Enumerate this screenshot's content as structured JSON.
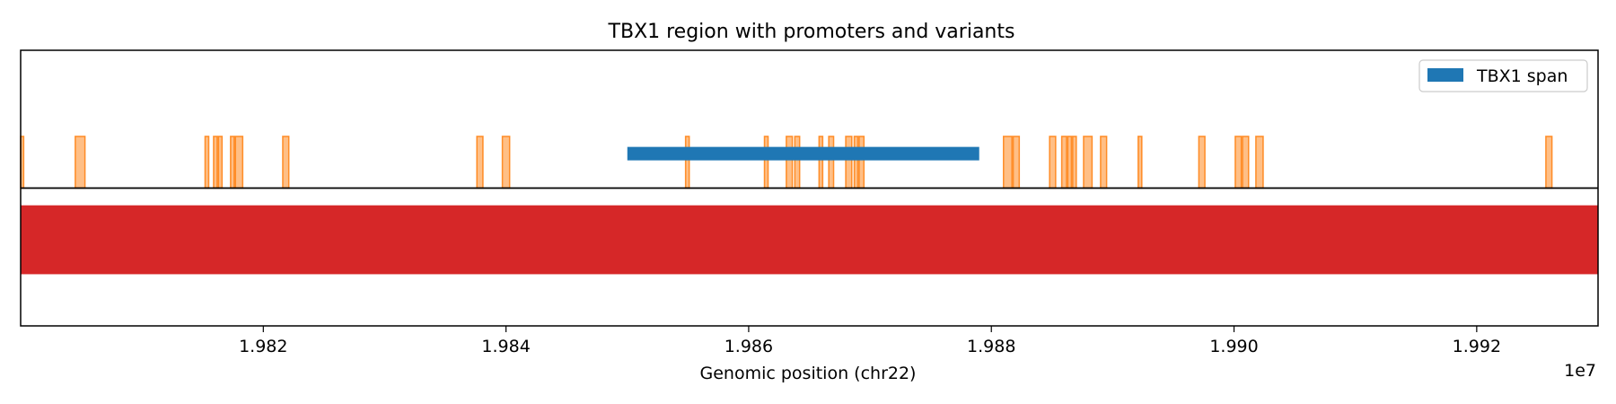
{
  "chart_data": {
    "type": "genome-track",
    "title": "TBX1 region with promoters and variants",
    "xlabel": "Genomic position (chr22)",
    "ylabel": "",
    "x_offset_label": "1e7",
    "xlim": [
      19800000,
      19930000
    ],
    "ylim": [
      -1.2,
      1.2
    ],
    "xticks": [
      19820000,
      19840000,
      19860000,
      19880000,
      19900000,
      19920000
    ],
    "xtick_labels": [
      "1.982",
      "1.984",
      "1.986",
      "1.988",
      "1.990",
      "1.992"
    ],
    "grid": false,
    "legend": {
      "position": "top-right",
      "entries": [
        "TBX1 span"
      ]
    },
    "baseline": {
      "y": 0,
      "color": "#000000"
    },
    "gene_span": {
      "name": "TBX1 span",
      "start": 19850000,
      "end": 19879000,
      "y": 0.3,
      "color": "#1f77b4"
    },
    "promoter_band": {
      "start": 19800000,
      "end": 19930000,
      "y0": -0.75,
      "y1": -0.15,
      "color": "#d62728"
    },
    "variants": {
      "color": "#ff7f0e",
      "y0": 0,
      "y1": 0.45,
      "regions": [
        [
          19800000,
          19800250
        ],
        [
          19804500,
          19805300
        ],
        [
          19815200,
          19815500
        ],
        [
          19815900,
          19816200
        ],
        [
          19816300,
          19816600
        ],
        [
          19817300,
          19817600
        ],
        [
          19817700,
          19818300
        ],
        [
          19821600,
          19822100
        ],
        [
          19837600,
          19838100
        ],
        [
          19839700,
          19840300
        ],
        [
          19854800,
          19855100
        ],
        [
          19861300,
          19861600
        ],
        [
          19863100,
          19863600
        ],
        [
          19863800,
          19864200
        ],
        [
          19865800,
          19866100
        ],
        [
          19866600,
          19867000
        ],
        [
          19868000,
          19868500
        ],
        [
          19868700,
          19869000
        ],
        [
          19869100,
          19869500
        ],
        [
          19881000,
          19881700
        ],
        [
          19881800,
          19882300
        ],
        [
          19884800,
          19885300
        ],
        [
          19885800,
          19886200
        ],
        [
          19886300,
          19886600
        ],
        [
          19886700,
          19887000
        ],
        [
          19887600,
          19888300
        ],
        [
          19889000,
          19889500
        ],
        [
          19892100,
          19892400
        ],
        [
          19897100,
          19897600
        ],
        [
          19900100,
          19900600
        ],
        [
          19900700,
          19901200
        ],
        [
          19901800,
          19902400
        ],
        [
          19925700,
          19926200
        ]
      ]
    }
  }
}
